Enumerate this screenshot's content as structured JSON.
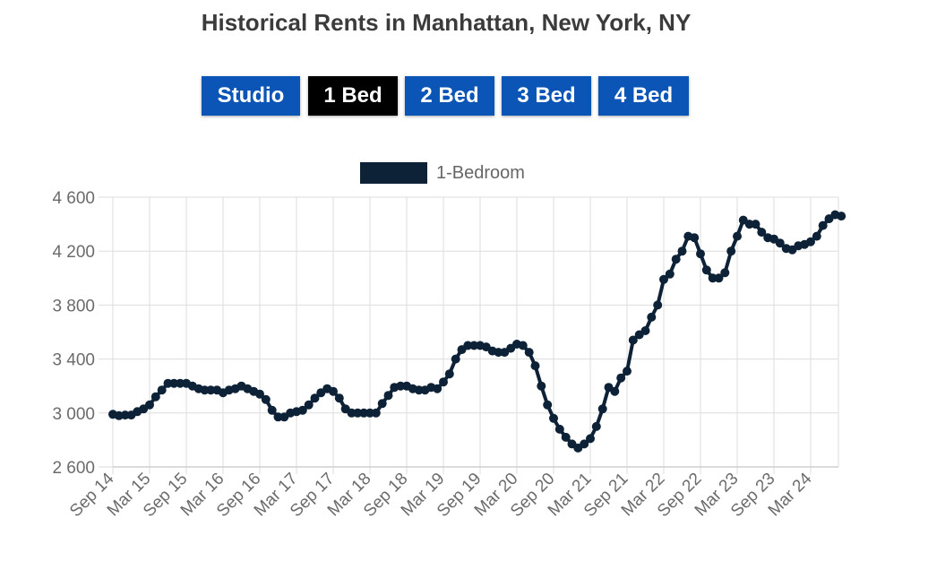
{
  "title": "Historical Rents in Manhattan, New York, NY",
  "tabs": [
    {
      "label": "Studio",
      "active": false
    },
    {
      "label": "1 Bed",
      "active": true
    },
    {
      "label": "2 Bed",
      "active": false
    },
    {
      "label": "3 Bed",
      "active": false
    },
    {
      "label": "4 Bed",
      "active": false
    }
  ],
  "colors": {
    "tab_blue": "#0a55b5",
    "tab_active": "#000000",
    "series": "#0d2237",
    "grid": "#dddddd"
  },
  "chart_data": {
    "type": "line",
    "title": "",
    "xlabel": "",
    "ylabel": "",
    "legend": {
      "position": "top-center"
    },
    "grid": true,
    "ylim": [
      2600,
      4600
    ],
    "yticks": [
      "4 600",
      "4 200",
      "3 800",
      "3 400",
      "3 000",
      "2 600"
    ],
    "yticks_values": [
      4600,
      4200,
      3800,
      3400,
      3000,
      2600
    ],
    "xtick_labels": [
      "Sep 14",
      "Mar 15",
      "Sep 15",
      "Mar 16",
      "Sep 16",
      "Mar 17",
      "Sep 17",
      "Mar 18",
      "Sep 18",
      "Mar 19",
      "Sep 19",
      "Mar 20",
      "Sep 20",
      "Mar 21",
      "Sep 21",
      "Mar 22",
      "Sep 22",
      "Mar 23",
      "Sep 23",
      "Mar 24"
    ],
    "x_start": "Sep 14",
    "x_end": "Jul 24",
    "series": [
      {
        "name": "1-Bedroom",
        "values": [
          2990,
          2980,
          2985,
          2985,
          3010,
          3030,
          3060,
          3120,
          3170,
          3220,
          3220,
          3220,
          3220,
          3200,
          3180,
          3170,
          3170,
          3170,
          3150,
          3170,
          3180,
          3200,
          3180,
          3160,
          3140,
          3100,
          3020,
          2970,
          2970,
          3000,
          3010,
          3020,
          3060,
          3110,
          3150,
          3180,
          3160,
          3110,
          3030,
          3000,
          3000,
          3000,
          3000,
          3000,
          3070,
          3130,
          3190,
          3200,
          3200,
          3180,
          3170,
          3170,
          3190,
          3180,
          3230,
          3290,
          3400,
          3470,
          3500,
          3500,
          3500,
          3490,
          3460,
          3450,
          3450,
          3480,
          3510,
          3500,
          3450,
          3350,
          3200,
          3060,
          2960,
          2880,
          2820,
          2770,
          2740,
          2770,
          2810,
          2900,
          3030,
          3190,
          3160,
          3260,
          3310,
          3540,
          3580,
          3610,
          3710,
          3800,
          3990,
          4030,
          4140,
          4200,
          4310,
          4300,
          4180,
          4060,
          4000,
          4000,
          4040,
          4200,
          4310,
          4430,
          4400,
          4400,
          4340,
          4300,
          4290,
          4260,
          4220,
          4210,
          4240,
          4250,
          4270,
          4310,
          4390,
          4440,
          4470,
          4460
        ]
      }
    ]
  }
}
